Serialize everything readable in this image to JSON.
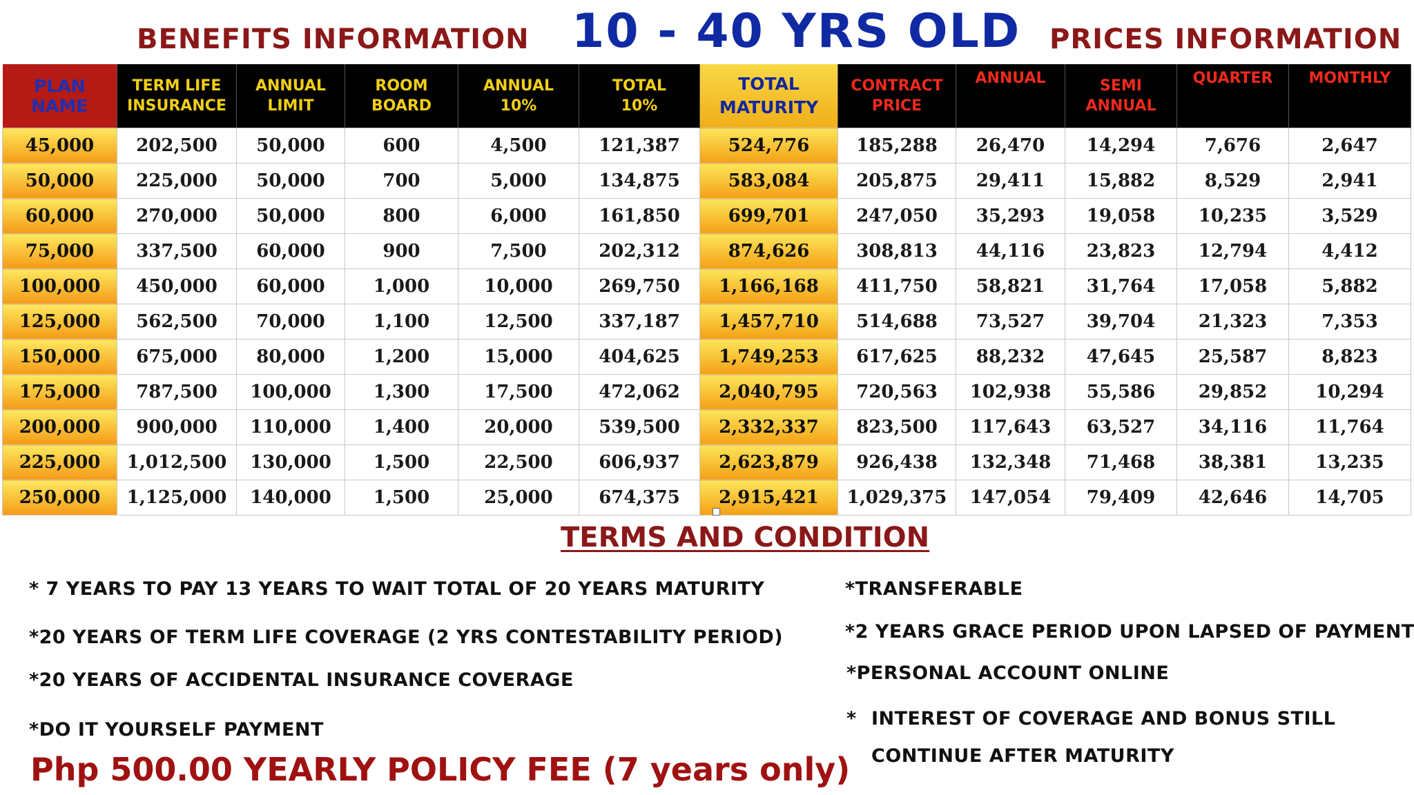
{
  "header": {
    "benefits_title": "BENEFITS INFORMATION",
    "age_title": "10 - 40 YRS OLD",
    "prices_title": "PRICES INFORMATION"
  },
  "table": {
    "columns": [
      [
        "PLAN",
        "NAME"
      ],
      [
        "TERM LIFE",
        "INSURANCE"
      ],
      [
        "ANNUAL",
        "LIMIT"
      ],
      [
        "ROOM",
        "BOARD"
      ],
      [
        "ANNUAL",
        "10%"
      ],
      [
        "TOTAL",
        "10%"
      ],
      [
        "TOTAL",
        "MATURITY"
      ],
      [
        "CONTRACT",
        "PRICE"
      ],
      [
        "ANNUAL"
      ],
      [
        "SEMI",
        "ANNUAL"
      ],
      [
        "QUARTER"
      ],
      [
        "MONTHLY"
      ]
    ],
    "rows": [
      [
        "45,000",
        "202,500",
        "50,000",
        "600",
        "4,500",
        "121,387",
        "524,776",
        "185,288",
        "26,470",
        "14,294",
        "7,676",
        "2,647"
      ],
      [
        "50,000",
        "225,000",
        "50,000",
        "700",
        "5,000",
        "134,875",
        "583,084",
        "205,875",
        "29,411",
        "15,882",
        "8,529",
        "2,941"
      ],
      [
        "60,000",
        "270,000",
        "50,000",
        "800",
        "6,000",
        "161,850",
        "699,701",
        "247,050",
        "35,293",
        "19,058",
        "10,235",
        "3,529"
      ],
      [
        "75,000",
        "337,500",
        "60,000",
        "900",
        "7,500",
        "202,312",
        "874,626",
        "308,813",
        "44,116",
        "23,823",
        "12,794",
        "4,412"
      ],
      [
        "100,000",
        "450,000",
        "60,000",
        "1,000",
        "10,000",
        "269,750",
        "1,166,168",
        "411,750",
        "58,821",
        "31,764",
        "17,058",
        "5,882"
      ],
      [
        "125,000",
        "562,500",
        "70,000",
        "1,100",
        "12,500",
        "337,187",
        "1,457,710",
        "514,688",
        "73,527",
        "39,704",
        "21,323",
        "7,353"
      ],
      [
        "150,000",
        "675,000",
        "80,000",
        "1,200",
        "15,000",
        "404,625",
        "1,749,253",
        "617,625",
        "88,232",
        "47,645",
        "25,587",
        "8,823"
      ],
      [
        "175,000",
        "787,500",
        "100,000",
        "1,300",
        "17,500",
        "472,062",
        "2,040,795",
        "720,563",
        "102,938",
        "55,586",
        "29,852",
        "10,294"
      ],
      [
        "200,000",
        "900,000",
        "110,000",
        "1,400",
        "20,000",
        "539,500",
        "2,332,337",
        "823,500",
        "117,643",
        "63,527",
        "34,116",
        "11,764"
      ],
      [
        "225,000",
        "1,012,500",
        "130,000",
        "1,500",
        "22,500",
        "606,937",
        "2,623,879",
        "926,438",
        "132,348",
        "71,468",
        "38,381",
        "13,235"
      ],
      [
        "250,000",
        "1,125,000",
        "140,000",
        "1,500",
        "25,000",
        "674,375",
        "2,915,421",
        "1,029,375",
        "147,054",
        "79,409",
        "42,646",
        "14,705"
      ]
    ]
  },
  "terms": {
    "title": "TERMS AND CONDITION",
    "left": [
      "* 7 YEARS TO PAY 13 YEARS TO WAIT TOTAL OF 20 YEARS MATURITY",
      "*20 YEARS OF TERM LIFE COVERAGE (2 YRS CONTESTABILITY PERIOD)",
      "*20 YEARS OF ACCIDENTAL INSURANCE COVERAGE",
      "*DO IT YOURSELF PAYMENT"
    ],
    "right": [
      "*TRANSFERABLE",
      "*2 YEARS GRACE PERIOD UPON LAPSED OF PAYMENT",
      "*PERSONAL ACCOUNT ONLINE",
      "*",
      "INTEREST OF COVERAGE AND BONUS STILL",
      "CONTINUE AFTER MATURITY"
    ],
    "policy_fee": "Php 500.00 YEARLY POLICY FEE (7 years only)"
  }
}
